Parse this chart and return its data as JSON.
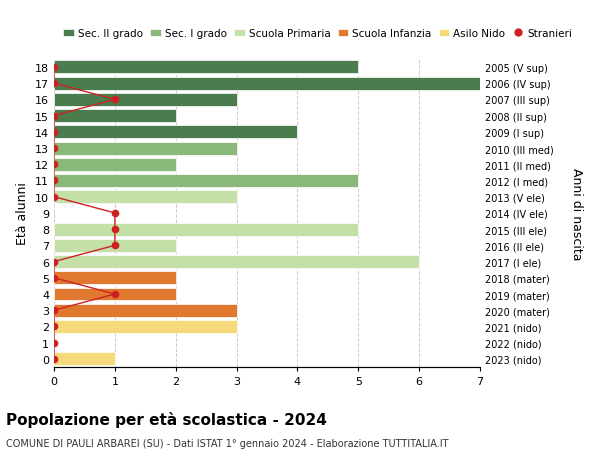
{
  "ages": [
    18,
    17,
    16,
    15,
    14,
    13,
    12,
    11,
    10,
    9,
    8,
    7,
    6,
    5,
    4,
    3,
    2,
    1,
    0
  ],
  "right_labels": [
    "2005 (V sup)",
    "2006 (IV sup)",
    "2007 (III sup)",
    "2008 (II sup)",
    "2009 (I sup)",
    "2010 (III med)",
    "2011 (II med)",
    "2012 (I med)",
    "2013 (V ele)",
    "2014 (IV ele)",
    "2015 (III ele)",
    "2016 (II ele)",
    "2017 (I ele)",
    "2018 (mater)",
    "2019 (mater)",
    "2020 (mater)",
    "2021 (nido)",
    "2022 (nido)",
    "2023 (nido)"
  ],
  "bar_values": [
    5,
    7,
    3,
    2,
    4,
    3,
    2,
    5,
    3,
    0,
    5,
    2,
    6,
    2,
    2,
    3,
    3,
    0,
    1
  ],
  "bar_colors": [
    "#4a7c4e",
    "#4a7c4e",
    "#4a7c4e",
    "#4a7c4e",
    "#4a7c4e",
    "#8ab87a",
    "#8ab87a",
    "#8ab87a",
    "#c5dfa8",
    "#c5dfa8",
    "#c5dfa8",
    "#c5dfa8",
    "#c5dfa8",
    "#e07830",
    "#e07830",
    "#e07830",
    "#f5d97a",
    "#f5d97a",
    "#f5d97a"
  ],
  "stranieri_values": [
    0,
    0,
    1,
    0,
    0,
    0,
    0,
    0,
    0,
    1,
    1,
    1,
    0,
    0,
    1,
    0,
    0,
    0,
    0
  ],
  "legend_labels": [
    "Sec. II grado",
    "Sec. I grado",
    "Scuola Primaria",
    "Scuola Infanzia",
    "Asilo Nido",
    "Stranieri"
  ],
  "legend_colors": [
    "#4a7c4e",
    "#8ab87a",
    "#c5dfa8",
    "#e07830",
    "#f5d97a",
    "#cc2222"
  ],
  "ylabel_left": "Età alunni",
  "ylabel_right": "Anni di nascita",
  "xlim": [
    0,
    7
  ],
  "title": "Popolazione per età scolastica - 2024",
  "subtitle": "COMUNE DI PAULI ARBAREI (SU) - Dati ISTAT 1° gennaio 2024 - Elaborazione TUTTITALIA.IT",
  "bg_color": "#ffffff",
  "grid_color": "#cccccc"
}
